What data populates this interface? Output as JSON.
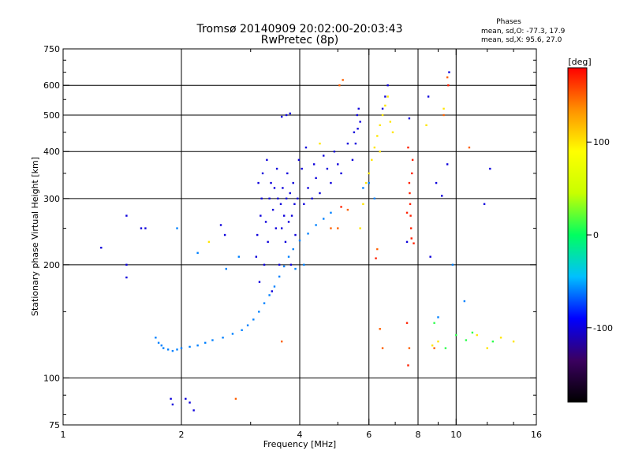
{
  "chart_data": {
    "type": "scatter",
    "title": "Tromsø 20140909 20:02:00-20:03:43",
    "subtitle": "RwPretec (8p)",
    "xlabel": "Frequency [MHz]",
    "ylabel": "Stationary phase Virtual Height [km]",
    "x_scale": "log",
    "y_scale": "log",
    "xlim": [
      1,
      16
    ],
    "ylim": [
      75,
      750
    ],
    "x_ticks": [
      1,
      2,
      4,
      6,
      8,
      10,
      16
    ],
    "x_tick_labels": [
      "1",
      "2",
      "4",
      "6",
      "8",
      "10",
      "16"
    ],
    "x_minor_ticks": [
      3,
      5,
      7,
      9,
      12,
      14
    ],
    "y_ticks": [
      75,
      100,
      200,
      300,
      400,
      500,
      600,
      750
    ],
    "y_tick_labels": [
      "75",
      "100",
      "200",
      "300",
      "400",
      "500",
      "600",
      "750"
    ],
    "y_minor_ticks": [
      80,
      90,
      150,
      250,
      350,
      450,
      550,
      650,
      700
    ],
    "grid_x": [
      2,
      4,
      6,
      8,
      10
    ],
    "grid_y": [
      100,
      200,
      300,
      400,
      500,
      600
    ],
    "stats": {
      "heading": "Phases",
      "line1": "mean, sd,O: -77.3, 17.9",
      "line2": "mean, sd,X:  95.6, 27.0"
    },
    "colorbar": {
      "label": "[deg]",
      "range": [
        -180,
        180
      ],
      "ticks": [
        100,
        0,
        -100
      ],
      "tick_labels": [
        "100",
        "0",
        "-100"
      ],
      "colors": [
        "#000000",
        "#3b0060",
        "#0000ff",
        "#00c0ff",
        "#00ff60",
        "#c8ff00",
        "#ffff00",
        "#ff9000",
        "#ff0000"
      ]
    },
    "series": [
      {
        "phase": -100,
        "points": [
          [
            1.25,
            222
          ],
          [
            1.45,
            270
          ],
          [
            1.45,
            200
          ],
          [
            1.45,
            185
          ],
          [
            1.58,
            250
          ],
          [
            1.62,
            250
          ],
          [
            1.88,
            88
          ],
          [
            1.9,
            85
          ],
          [
            2.05,
            88
          ],
          [
            2.1,
            86
          ],
          [
            2.15,
            82
          ],
          [
            2.52,
            255
          ],
          [
            2.58,
            240
          ],
          [
            3.1,
            210
          ],
          [
            3.12,
            240
          ],
          [
            3.14,
            330
          ],
          [
            3.16,
            180
          ],
          [
            3.18,
            270
          ],
          [
            3.2,
            300
          ],
          [
            3.22,
            350
          ],
          [
            3.25,
            200
          ],
          [
            3.28,
            260
          ],
          [
            3.3,
            380
          ],
          [
            3.32,
            230
          ],
          [
            3.35,
            300
          ],
          [
            3.38,
            330
          ],
          [
            3.4,
            170
          ],
          [
            3.42,
            280
          ],
          [
            3.45,
            320
          ],
          [
            3.48,
            250
          ],
          [
            3.5,
            360
          ],
          [
            3.52,
            300
          ],
          [
            3.55,
            200
          ],
          [
            3.58,
            290
          ],
          [
            3.6,
            250
          ],
          [
            3.62,
            320
          ],
          [
            3.65,
            270
          ],
          [
            3.68,
            230
          ],
          [
            3.7,
            300
          ],
          [
            3.72,
            350
          ],
          [
            3.75,
            260
          ],
          [
            3.78,
            310
          ],
          [
            3.8,
            200
          ],
          [
            3.82,
            270
          ],
          [
            3.85,
            330
          ],
          [
            3.88,
            290
          ],
          [
            3.9,
            240
          ],
          [
            3.95,
            300
          ],
          [
            3.98,
            380
          ],
          [
            4.05,
            360
          ],
          [
            4.1,
            290
          ],
          [
            4.15,
            410
          ],
          [
            4.2,
            320
          ],
          [
            4.3,
            300
          ],
          [
            4.35,
            370
          ],
          [
            4.4,
            340
          ],
          [
            4.5,
            310
          ],
          [
            4.6,
            390
          ],
          [
            4.7,
            360
          ],
          [
            4.8,
            330
          ],
          [
            4.9,
            400
          ],
          [
            5.0,
            370
          ],
          [
            5.1,
            350
          ],
          [
            5.3,
            420
          ],
          [
            5.45,
            380
          ],
          [
            5.5,
            450
          ],
          [
            5.55,
            420
          ],
          [
            5.6,
            500
          ],
          [
            5.62,
            460
          ],
          [
            5.65,
            520
          ],
          [
            5.7,
            480
          ],
          [
            3.6,
            495
          ],
          [
            3.7,
            500
          ],
          [
            3.78,
            505
          ],
          [
            6.5,
            520
          ],
          [
            6.6,
            560
          ],
          [
            6.7,
            600
          ],
          [
            8.5,
            560
          ],
          [
            9.5,
            370
          ],
          [
            9.6,
            650
          ],
          [
            11.8,
            290
          ],
          [
            12.2,
            360
          ],
          [
            9.2,
            305
          ],
          [
            8.9,
            330
          ],
          [
            8.6,
            210
          ],
          [
            7.6,
            490
          ],
          [
            7.5,
            230
          ]
        ]
      },
      {
        "phase": -60,
        "points": [
          [
            1.72,
            128
          ],
          [
            1.75,
            124
          ],
          [
            1.78,
            122
          ],
          [
            1.8,
            120
          ],
          [
            1.85,
            119
          ],
          [
            1.9,
            118
          ],
          [
            1.95,
            119
          ],
          [
            2.0,
            120
          ],
          [
            2.1,
            121
          ],
          [
            2.2,
            122
          ],
          [
            2.3,
            124
          ],
          [
            2.4,
            126
          ],
          [
            2.55,
            128
          ],
          [
            2.7,
            131
          ],
          [
            2.85,
            134
          ],
          [
            2.95,
            138
          ],
          [
            3.05,
            143
          ],
          [
            3.15,
            150
          ],
          [
            3.25,
            158
          ],
          [
            3.35,
            166
          ],
          [
            3.45,
            175
          ],
          [
            3.55,
            186
          ],
          [
            3.65,
            198
          ],
          [
            3.75,
            210
          ],
          [
            3.85,
            220
          ],
          [
            4.0,
            232
          ],
          [
            4.2,
            242
          ],
          [
            4.4,
            255
          ],
          [
            4.6,
            265
          ],
          [
            4.8,
            275
          ],
          [
            2.6,
            195
          ],
          [
            2.2,
            215
          ],
          [
            1.95,
            250
          ],
          [
            2.8,
            210
          ],
          [
            4.1,
            200
          ],
          [
            3.9,
            195
          ],
          [
            6.2,
            300
          ],
          [
            6.0,
            330
          ],
          [
            5.8,
            320
          ],
          [
            9.8,
            200
          ],
          [
            9.0,
            145
          ],
          [
            10.5,
            160
          ]
        ]
      },
      {
        "phase": 10,
        "points": [
          [
            8.8,
            140
          ],
          [
            9.4,
            120
          ],
          [
            10.0,
            130
          ],
          [
            10.6,
            126
          ],
          [
            11.0,
            132
          ],
          [
            12.4,
            125
          ]
        ]
      },
      {
        "phase": 100,
        "points": [
          [
            5.7,
            250
          ],
          [
            5.8,
            290
          ],
          [
            5.9,
            330
          ],
          [
            6.0,
            350
          ],
          [
            6.1,
            380
          ],
          [
            6.2,
            410
          ],
          [
            6.3,
            440
          ],
          [
            6.4,
            470
          ],
          [
            6.5,
            500
          ],
          [
            6.6,
            530
          ],
          [
            6.7,
            560
          ],
          [
            6.8,
            480
          ],
          [
            6.4,
            400
          ],
          [
            6.9,
            450
          ],
          [
            8.7,
            122
          ],
          [
            9.0,
            125
          ],
          [
            11.3,
            130
          ],
          [
            12.0,
            120
          ],
          [
            13.0,
            128
          ],
          [
            14.0,
            125
          ],
          [
            8.4,
            470
          ],
          [
            9.3,
            520
          ],
          [
            4.5,
            420
          ],
          [
            2.35,
            230
          ]
        ]
      },
      {
        "phase": 150,
        "points": [
          [
            5.05,
            600
          ],
          [
            5.15,
            620
          ],
          [
            5.3,
            280
          ],
          [
            5.0,
            250
          ],
          [
            4.8,
            250
          ],
          [
            6.4,
            135
          ],
          [
            6.5,
            120
          ],
          [
            7.6,
            120
          ],
          [
            8.8,
            120
          ],
          [
            9.3,
            500
          ],
          [
            9.5,
            630
          ],
          [
            10.8,
            410
          ],
          [
            2.75,
            88
          ],
          [
            3.6,
            125
          ],
          [
            6.3,
            220
          ]
        ]
      },
      {
        "phase": 170,
        "points": [
          [
            7.6,
            330
          ],
          [
            7.62,
            310
          ],
          [
            7.64,
            290
          ],
          [
            7.66,
            270
          ],
          [
            7.68,
            250
          ],
          [
            7.7,
            235
          ],
          [
            7.72,
            350
          ],
          [
            7.75,
            380
          ],
          [
            7.55,
            410
          ],
          [
            7.5,
            275
          ],
          [
            7.8,
            228
          ],
          [
            7.5,
            140
          ],
          [
            7.55,
            108
          ],
          [
            6.25,
            208
          ],
          [
            9.55,
            600
          ],
          [
            5.1,
            285
          ]
        ]
      }
    ]
  }
}
